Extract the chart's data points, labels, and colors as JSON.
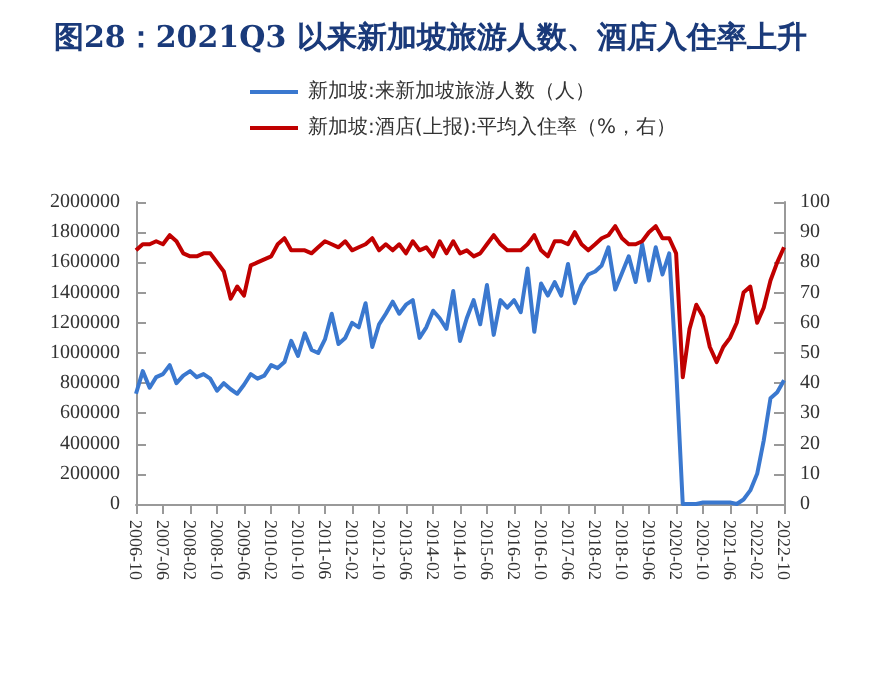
{
  "chart_data": {
    "type": "line",
    "title": "图28：2021Q3 以来新加坡旅游人数、酒店入住率上升",
    "x": [
      "2006-10",
      "2006-12",
      "2007-02",
      "2007-04",
      "2007-06",
      "2007-08",
      "2007-10",
      "2007-12",
      "2008-02",
      "2008-04",
      "2008-06",
      "2008-08",
      "2008-10",
      "2008-12",
      "2009-02",
      "2009-04",
      "2009-06",
      "2009-08",
      "2009-10",
      "2009-12",
      "2010-02",
      "2010-04",
      "2010-06",
      "2010-08",
      "2010-10",
      "2010-12",
      "2011-02",
      "2011-04",
      "2011-06",
      "2011-08",
      "2011-10",
      "2011-12",
      "2012-02",
      "2012-04",
      "2012-06",
      "2012-08",
      "2012-10",
      "2012-12",
      "2013-02",
      "2013-04",
      "2013-06",
      "2013-08",
      "2013-10",
      "2013-12",
      "2014-02",
      "2014-04",
      "2014-06",
      "2014-08",
      "2014-10",
      "2014-12",
      "2015-02",
      "2015-04",
      "2015-06",
      "2015-08",
      "2015-10",
      "2015-12",
      "2016-02",
      "2016-04",
      "2016-06",
      "2016-08",
      "2016-10",
      "2016-12",
      "2017-02",
      "2017-04",
      "2017-06",
      "2017-08",
      "2017-10",
      "2017-12",
      "2018-02",
      "2018-04",
      "2018-06",
      "2018-08",
      "2018-10",
      "2018-12",
      "2019-02",
      "2019-04",
      "2019-06",
      "2019-08",
      "2019-10",
      "2019-12",
      "2020-02",
      "2020-04",
      "2020-06",
      "2020-08",
      "2020-10",
      "2020-12",
      "2021-02",
      "2021-04",
      "2021-06",
      "2021-08",
      "2021-10",
      "2021-12",
      "2022-02",
      "2022-04",
      "2022-06",
      "2022-08",
      "2022-10"
    ],
    "series": [
      {
        "name": "新加坡:来新加坡旅游人数（人）",
        "color": "#3a78cf",
        "values": [
          730000,
          880000,
          770000,
          840000,
          860000,
          920000,
          800000,
          850000,
          880000,
          840000,
          860000,
          830000,
          750000,
          800000,
          760000,
          730000,
          790000,
          860000,
          830000,
          850000,
          920000,
          900000,
          940000,
          1080000,
          980000,
          1130000,
          1020000,
          1000000,
          1090000,
          1260000,
          1060000,
          1100000,
          1200000,
          1170000,
          1330000,
          1040000,
          1190000,
          1260000,
          1340000,
          1260000,
          1320000,
          1350000,
          1100000,
          1170000,
          1280000,
          1230000,
          1160000,
          1410000,
          1080000,
          1230000,
          1350000,
          1190000,
          1450000,
          1120000,
          1350000,
          1300000,
          1350000,
          1270000,
          1560000,
          1140000,
          1460000,
          1380000,
          1470000,
          1380000,
          1590000,
          1330000,
          1450000,
          1520000,
          1540000,
          1580000,
          1700000,
          1420000,
          1530000,
          1640000,
          1470000,
          1720000,
          1480000,
          1700000,
          1520000,
          1660000,
          900000,
          0,
          0,
          0,
          10000,
          10000,
          10000,
          10000,
          10000,
          0,
          30000,
          90000,
          200000,
          420000,
          700000,
          740000,
          820000
        ]
      },
      {
        "name": "新加坡:酒店(上报):平均入住率（%，右）",
        "color": "#c00000",
        "axis": "y2",
        "values": [
          84,
          86,
          86,
          87,
          86,
          89,
          87,
          83,
          82,
          82,
          83,
          83,
          80,
          77,
          68,
          72,
          69,
          79,
          80,
          81,
          82,
          86,
          88,
          84,
          84,
          84,
          83,
          85,
          87,
          86,
          85,
          87,
          84,
          85,
          86,
          88,
          84,
          86,
          84,
          86,
          83,
          87,
          84,
          85,
          82,
          87,
          83,
          87,
          83,
          84,
          82,
          83,
          86,
          89,
          86,
          84,
          84,
          84,
          86,
          89,
          84,
          82,
          87,
          87,
          86,
          90,
          86,
          84,
          86,
          88,
          89,
          92,
          88,
          86,
          86,
          87,
          90,
          92,
          88,
          88,
          83,
          42,
          58,
          66,
          62,
          52,
          47,
          52,
          55,
          60,
          70,
          72,
          60,
          65,
          74,
          80,
          85
        ]
      }
    ],
    "xlim": [
      "2006-10",
      "2022-10"
    ],
    "xticks": [
      "2006-10",
      "2007-06",
      "2008-02",
      "2008-10",
      "2009-06",
      "2010-02",
      "2010-10",
      "2011-06",
      "2012-02",
      "2012-10",
      "2013-06",
      "2014-02",
      "2014-10",
      "2015-06",
      "2016-02",
      "2016-10",
      "2017-06",
      "2018-02",
      "2018-10",
      "2019-06",
      "2020-02",
      "2020-10",
      "2021-06",
      "2022-02",
      "2022-10"
    ],
    "ylim": [
      0,
      2000000
    ],
    "yticks": [
      0,
      200000,
      400000,
      600000,
      800000,
      1000000,
      1200000,
      1400000,
      1600000,
      1800000,
      2000000
    ],
    "y2lim": [
      0,
      100
    ],
    "y2ticks": [
      0,
      10,
      20,
      30,
      40,
      50,
      60,
      70,
      80,
      90,
      100
    ],
    "grid": false,
    "legend": "top",
    "marker": "none",
    "line_style": "solid"
  }
}
